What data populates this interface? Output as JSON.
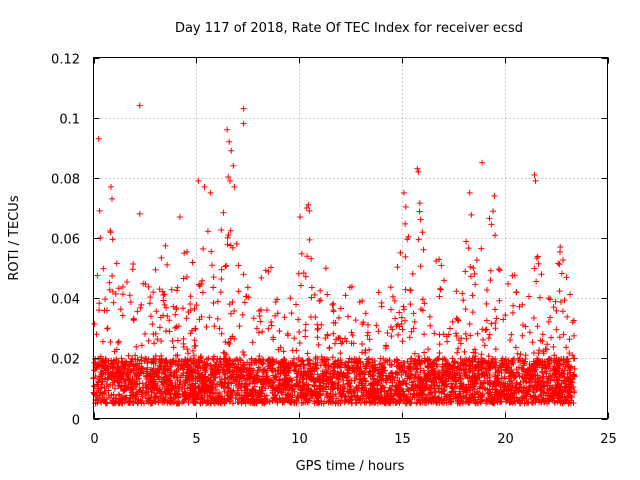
{
  "chart_data": {
    "type": "scatter",
    "title": "Day 117 of 2018, Rate Of TEC Index for receiver ecsd",
    "xlabel": "GPS time / hours",
    "ylabel": "ROTI / TECUs",
    "xlim": [
      0,
      25
    ],
    "ylim": [
      0,
      0.12
    ],
    "xticks": [
      0,
      5,
      10,
      15,
      20,
      25
    ],
    "xtick_labels": [
      "0",
      "5",
      "10",
      "15",
      "20",
      "25"
    ],
    "yticks": [
      0,
      0.02,
      0.04,
      0.06,
      0.08,
      0.1,
      0.12
    ],
    "ytick_labels": [
      "0",
      "0.02",
      "0.04",
      "0.06",
      "0.08",
      "0.1",
      "0.12"
    ],
    "grid": true,
    "marker": "+",
    "color": "#ff0000",
    "data_x_range": [
      0,
      23.4
    ],
    "baseline_band": [
      0.005,
      0.02
    ],
    "envelope": [
      [
        0.0,
        0.03
      ],
      [
        0.3,
        0.069
      ],
      [
        0.6,
        0.04
      ],
      [
        0.9,
        0.077
      ],
      [
        1.2,
        0.045
      ],
      [
        1.5,
        0.05
      ],
      [
        2.0,
        0.058
      ],
      [
        2.5,
        0.045
      ],
      [
        3.0,
        0.055
      ],
      [
        3.5,
        0.058
      ],
      [
        4.0,
        0.05
      ],
      [
        4.5,
        0.068
      ],
      [
        5.0,
        0.047
      ],
      [
        5.5,
        0.066
      ],
      [
        6.0,
        0.045
      ],
      [
        6.5,
        0.092
      ],
      [
        7.0,
        0.062
      ],
      [
        7.3,
        0.055
      ],
      [
        7.8,
        0.035
      ],
      [
        8.5,
        0.058
      ],
      [
        9.0,
        0.04
      ],
      [
        9.5,
        0.045
      ],
      [
        10.0,
        0.06
      ],
      [
        10.4,
        0.071
      ],
      [
        10.8,
        0.045
      ],
      [
        11.5,
        0.052
      ],
      [
        12.0,
        0.04
      ],
      [
        12.5,
        0.052
      ],
      [
        13.0,
        0.04
      ],
      [
        13.5,
        0.038
      ],
      [
        14.0,
        0.05
      ],
      [
        14.5,
        0.045
      ],
      [
        15.0,
        0.06
      ],
      [
        15.2,
        0.072
      ],
      [
        15.5,
        0.05
      ],
      [
        15.8,
        0.082
      ],
      [
        16.2,
        0.045
      ],
      [
        16.8,
        0.055
      ],
      [
        17.5,
        0.04
      ],
      [
        18.0,
        0.06
      ],
      [
        18.3,
        0.074
      ],
      [
        18.7,
        0.068
      ],
      [
        19.0,
        0.058
      ],
      [
        19.4,
        0.072
      ],
      [
        20.0,
        0.04
      ],
      [
        20.3,
        0.052
      ],
      [
        21.0,
        0.045
      ],
      [
        21.5,
        0.06
      ],
      [
        22.0,
        0.045
      ],
      [
        22.7,
        0.057
      ],
      [
        23.0,
        0.048
      ],
      [
        23.4,
        0.035
      ]
    ],
    "outliers": [
      {
        "x": 0.25,
        "y": 0.093
      },
      {
        "x": 0.3,
        "y": 0.069
      },
      {
        "x": 0.85,
        "y": 0.077
      },
      {
        "x": 0.9,
        "y": 0.073
      },
      {
        "x": 2.25,
        "y": 0.104
      },
      {
        "x": 2.25,
        "y": 0.068
      },
      {
        "x": 4.2,
        "y": 0.067
      },
      {
        "x": 5.1,
        "y": 0.079
      },
      {
        "x": 5.4,
        "y": 0.077
      },
      {
        "x": 5.7,
        "y": 0.075
      },
      {
        "x": 6.5,
        "y": 0.096
      },
      {
        "x": 6.6,
        "y": 0.092
      },
      {
        "x": 6.7,
        "y": 0.089
      },
      {
        "x": 6.8,
        "y": 0.084
      },
      {
        "x": 6.85,
        "y": 0.077
      },
      {
        "x": 7.3,
        "y": 0.103
      },
      {
        "x": 7.3,
        "y": 0.098
      },
      {
        "x": 10.05,
        "y": 0.067
      },
      {
        "x": 10.45,
        "y": 0.071
      },
      {
        "x": 10.5,
        "y": 0.069
      },
      {
        "x": 15.1,
        "y": 0.075
      },
      {
        "x": 15.75,
        "y": 0.083
      },
      {
        "x": 15.8,
        "y": 0.082
      },
      {
        "x": 18.3,
        "y": 0.075
      },
      {
        "x": 18.9,
        "y": 0.085
      },
      {
        "x": 19.5,
        "y": 0.074
      },
      {
        "x": 21.45,
        "y": 0.081
      },
      {
        "x": 21.5,
        "y": 0.079
      },
      {
        "x": 22.7,
        "y": 0.057
      }
    ]
  }
}
